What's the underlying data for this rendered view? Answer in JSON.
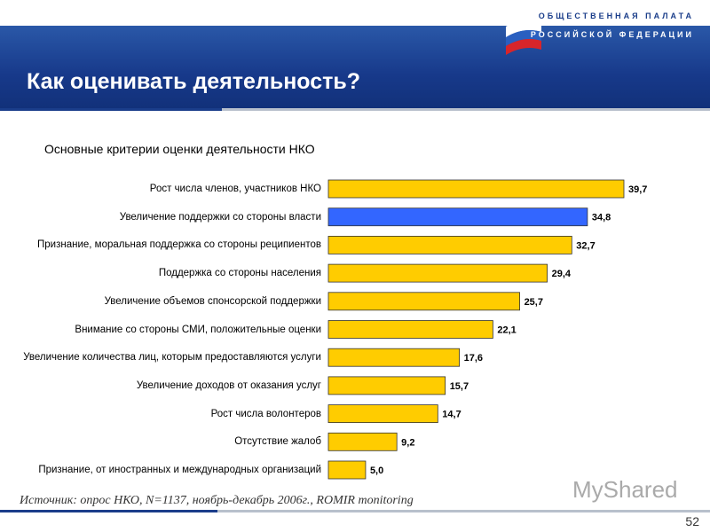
{
  "header": {
    "logo_line1": "ОБЩЕСТВЕННАЯ ПАЛАТА",
    "logo_line2": "РОССИЙСКОЙ ФЕДЕРАЦИИ",
    "title": "Как оценивать деятельность?"
  },
  "chart_data": {
    "type": "bar",
    "orientation": "horizontal",
    "title": "Основные критерии оценки деятельности НКО",
    "categories": [
      "Рост числа членов, участников НКО",
      "Увеличение поддержки со стороны власти",
      "Признание, моральная поддержка со стороны реципиентов",
      "Поддержка со стороны населения",
      "Увеличение объемов спонсорской поддержки",
      "Внимание со стороны СМИ, положительные оценки",
      "Увеличение количества лиц, которым предоставляются услуги",
      "Увеличение доходов от оказания услуг",
      "Рост числа волонтеров",
      "Отсутствие жалоб",
      "Признание, от иностранных и международных организаций"
    ],
    "values": [
      39.7,
      34.8,
      32.7,
      29.4,
      25.7,
      22.1,
      17.6,
      15.7,
      14.7,
      9.2,
      5.0
    ],
    "value_labels": [
      "39,7",
      "34,8",
      "32,7",
      "29,4",
      "25,7",
      "22,1",
      "17,6",
      "15,7",
      "14,7",
      "9,2",
      "5,0"
    ],
    "colors": [
      "#ffcc00",
      "#3366ff",
      "#ffcc00",
      "#ffcc00",
      "#ffcc00",
      "#ffcc00",
      "#ffcc00",
      "#ffcc00",
      "#ffcc00",
      "#ffcc00",
      "#ffcc00"
    ]
  },
  "source": "Источник: опрос НКО, N=1137, ноябрь-декабрь 2006г., ROMIR monitoring",
  "watermark": "MyShared",
  "page_number": "52"
}
